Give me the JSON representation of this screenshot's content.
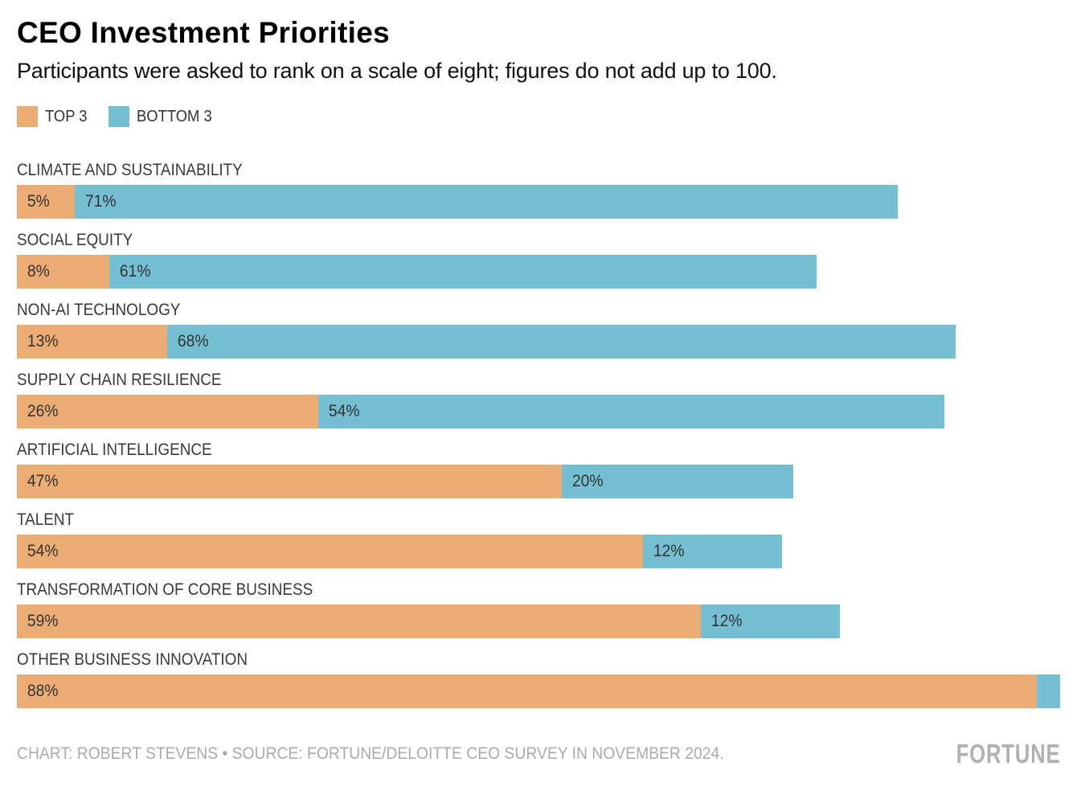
{
  "header": {
    "title": "CEO Investment Priorities",
    "subtitle": "Participants were asked to rank on a scale of eight; figures do not add up to 100."
  },
  "legend": [
    {
      "label": "TOP 3",
      "color": "#EBAD74"
    },
    {
      "label": "BOTTOM 3",
      "color": "#74BFD2"
    }
  ],
  "footer": {
    "credit": "CHART: ROBERT STEVENS • SOURCE: FORTUNE/DELOITTE CEO SURVEY IN NOVEMBER 2024.",
    "logo": "FORTUNE"
  },
  "colors": {
    "top3": "#EBAD74",
    "bottom3": "#74BFD2",
    "category_label": "#3A3A3A",
    "value_label": "#333333",
    "footer_text": "#ABABAB",
    "logo": "#B1B1B1"
  },
  "chart_data": {
    "type": "bar",
    "orientation": "horizontal_stacked",
    "title": "CEO Investment Priorities",
    "subtitle": "Participants were asked to rank on a scale of eight; figures do not add up to 100.",
    "legend_position": "top",
    "grid": false,
    "axis_max": 90,
    "categories": [
      "CLIMATE AND SUSTAINABILITY",
      "SOCIAL EQUITY",
      "NON-AI TECHNOLOGY",
      "SUPPLY CHAIN RESILIENCE",
      "ARTIFICIAL INTELLIGENCE",
      "TALENT",
      "TRANSFORMATION OF CORE BUSINESS",
      "OTHER BUSINESS INNOVATION"
    ],
    "series": [
      {
        "name": "TOP 3",
        "color": "#EBAD74",
        "values": [
          5,
          8,
          13,
          26,
          47,
          54,
          59,
          88
        ]
      },
      {
        "name": "BOTTOM 3",
        "color": "#74BFD2",
        "values": [
          71,
          61,
          68,
          54,
          20,
          12,
          12,
          2
        ]
      }
    ],
    "value_labels": {
      "top": [
        "5%",
        "8%",
        "13%",
        "26%",
        "47%",
        "54%",
        "59%",
        "88%"
      ],
      "bottom": [
        "71%",
        "61%",
        "68%",
        "54%",
        "20%",
        "12%",
        "12%",
        ""
      ]
    }
  }
}
